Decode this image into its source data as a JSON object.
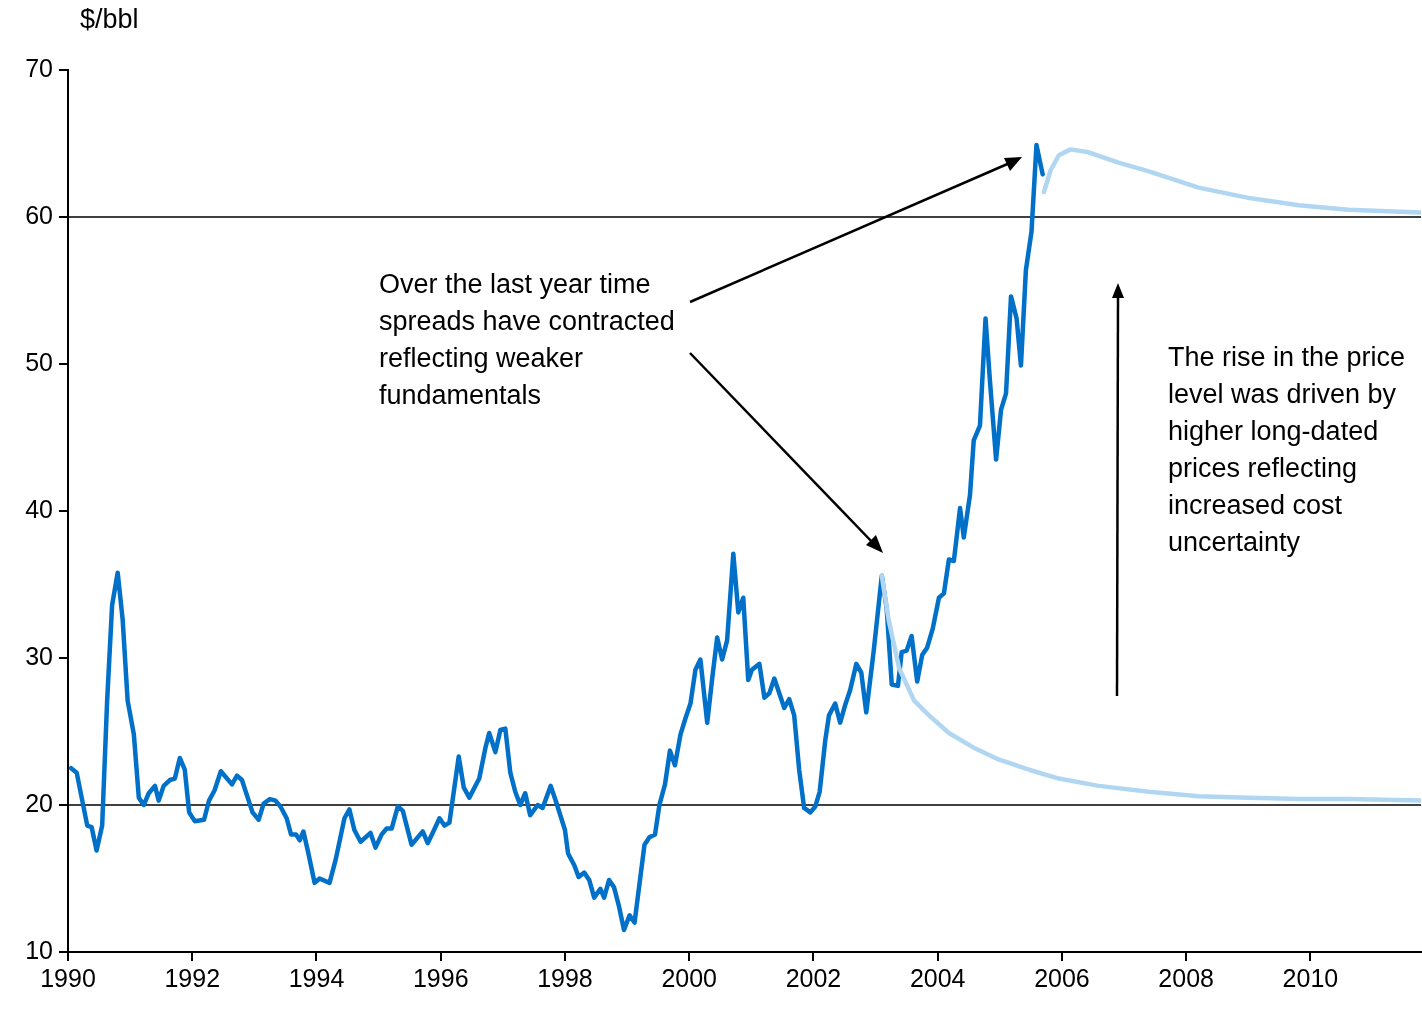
{
  "chart_data": {
    "type": "line",
    "ylabel": "$/bbl",
    "xlim": [
      1990,
      2011.78
    ],
    "xticks": [
      1990,
      1992,
      1994,
      1996,
      1998,
      2000,
      2002,
      2004,
      2006,
      2008,
      2010
    ],
    "ylim": [
      10,
      70
    ],
    "yticks": [
      10,
      20,
      30,
      40,
      50,
      60,
      70
    ],
    "grid": false,
    "legend": false,
    "marker": "none",
    "ref_lines": [
      {
        "axis": "y",
        "value": 20,
        "color": "#000000"
      },
      {
        "axis": "y",
        "value": 60,
        "color": "#000000"
      }
    ],
    "annotations": [
      "Over the last year time spreads have contracted reflecting weaker fundamentals",
      "The rise in the price level was driven by higher long-dated prices reflecting increased cost uncertainty"
    ],
    "series": [
      {
        "color": "#0070c8",
        "x": [
          1990.05,
          1990.14,
          1990.31,
          1990.38,
          1990.46,
          1990.55,
          1990.63,
          1990.71,
          1990.8,
          1990.88,
          1990.96,
          1991.06,
          1991.14,
          1991.22,
          1991.3,
          1991.4,
          1991.46,
          1991.54,
          1991.64,
          1991.72,
          1991.8,
          1991.88,
          1991.95,
          1992.04,
          1992.19,
          1992.27,
          1992.36,
          1992.46,
          1992.64,
          1992.72,
          1992.8,
          1992.97,
          1993.07,
          1993.15,
          1993.25,
          1993.34,
          1993.42,
          1993.52,
          1993.59,
          1993.67,
          1993.73,
          1993.79,
          1993.87,
          1993.97,
          1994.05,
          1994.21,
          1994.31,
          1994.45,
          1994.53,
          1994.61,
          1994.71,
          1994.87,
          1994.95,
          1995.05,
          1995.13,
          1995.21,
          1995.31,
          1995.39,
          1995.53,
          1995.63,
          1995.71,
          1995.79,
          1995.87,
          1995.98,
          1996.06,
          1996.14,
          1996.22,
          1996.29,
          1996.37,
          1996.46,
          1996.62,
          1996.72,
          1996.78,
          1996.88,
          1996.96,
          1997.04,
          1997.12,
          1997.2,
          1997.28,
          1997.36,
          1997.44,
          1997.56,
          1997.64,
          1997.77,
          1997.85,
          1998.0,
          1998.05,
          1998.15,
          1998.22,
          1998.31,
          1998.39,
          1998.47,
          1998.57,
          1998.63,
          1998.71,
          1998.79,
          1998.87,
          1998.95,
          1999.04,
          1999.12,
          1999.28,
          1999.36,
          1999.45,
          1999.52,
          1999.61,
          1999.69,
          1999.77,
          1999.86,
          1999.94,
          2000.02,
          2000.1,
          2000.18,
          2000.29,
          2000.37,
          2000.45,
          2000.53,
          2000.61,
          2000.71,
          2000.79,
          2000.87,
          2000.95,
          2001.01,
          2001.13,
          2001.21,
          2001.29,
          2001.37,
          2001.53,
          2001.61,
          2001.69,
          2001.77,
          2001.85,
          2001.95,
          2002.03,
          2002.1,
          2002.19,
          2002.25,
          2002.35,
          2002.43,
          2002.51,
          2002.59,
          2002.69,
          2002.77,
          2002.85,
          2002.97,
          2003.1,
          2003.18,
          2003.26,
          2003.36,
          2003.42,
          2003.5,
          2003.58,
          2003.67,
          2003.75,
          2003.83,
          2003.92,
          2004.02,
          2004.1,
          2004.18,
          2004.26,
          2004.36,
          2004.42,
          2004.52,
          2004.58,
          2004.68,
          2004.77,
          2004.84,
          2004.94,
          2005.02,
          2005.1,
          2005.18,
          2005.27,
          2005.34,
          2005.42,
          2005.51,
          2005.59,
          2005.69
        ],
        "values": [
          22.5,
          22.2,
          18.6,
          18.5,
          16.9,
          18.6,
          27.1,
          33.6,
          35.8,
          32.6,
          27.1,
          24.8,
          20.5,
          20.0,
          20.8,
          21.3,
          20.3,
          21.3,
          21.7,
          21.8,
          23.2,
          22.4,
          19.5,
          18.9,
          19.0,
          20.3,
          21.0,
          22.3,
          21.4,
          22.0,
          21.7,
          19.5,
          19.0,
          20.1,
          20.4,
          20.3,
          19.9,
          19.1,
          18.0,
          18.0,
          17.6,
          18.2,
          16.7,
          14.7,
          15.0,
          14.7,
          16.3,
          19.1,
          19.7,
          18.3,
          17.5,
          18.1,
          17.1,
          18.0,
          18.4,
          18.4,
          19.9,
          19.6,
          17.3,
          17.8,
          18.2,
          17.4,
          18.1,
          19.1,
          18.6,
          18.8,
          21.2,
          23.3,
          21.2,
          20.5,
          21.8,
          23.9,
          24.9,
          23.6,
          25.1,
          25.2,
          22.2,
          20.9,
          20.0,
          20.8,
          19.3,
          20.0,
          19.8,
          21.3,
          20.3,
          18.3,
          16.7,
          15.9,
          15.1,
          15.4,
          14.9,
          13.7,
          14.3,
          13.7,
          14.9,
          14.4,
          13.1,
          11.5,
          12.5,
          12.0,
          17.3,
          17.8,
          18.0,
          20.0,
          21.4,
          23.7,
          22.7,
          24.8,
          25.9,
          26.9,
          29.2,
          29.9,
          25.6,
          28.6,
          31.4,
          29.9,
          31.2,
          37.1,
          33.1,
          34.1,
          28.5,
          29.2,
          29.6,
          27.3,
          27.6,
          28.6,
          26.6,
          27.2,
          26.1,
          22.4,
          19.8,
          19.5,
          19.9,
          20.9,
          24.4,
          26.1,
          26.9,
          25.6,
          26.8,
          27.8,
          29.6,
          29.0,
          26.3,
          30.5,
          35.6,
          33.3,
          28.2,
          28.1,
          30.4,
          30.5,
          31.5,
          28.4,
          30.2,
          30.7,
          32.0,
          34.1,
          34.4,
          36.7,
          36.6,
          40.2,
          38.2,
          41.1,
          44.8,
          45.8,
          53.1,
          48.9,
          43.5,
          46.9,
          48.0,
          54.6,
          53.1,
          49.9,
          56.4,
          59.0,
          64.9,
          62.9
        ]
      },
      {
        "color": "#b0d6f2",
        "x": [
          2003.1,
          2003.21,
          2003.38,
          2003.62,
          2003.86,
          2004.18,
          2004.58,
          2004.98,
          2005.47,
          2005.95,
          2006.59,
          2007.4,
          2008.2,
          2009.0,
          2009.81,
          2010.61,
          2011.77
        ],
        "values": [
          35.6,
          32.6,
          29.3,
          27.1,
          26.1,
          24.9,
          23.9,
          23.1,
          22.4,
          21.8,
          21.3,
          20.9,
          20.6,
          20.5,
          20.4,
          20.4,
          20.3
        ]
      },
      {
        "color": "#b0d6f2",
        "x": [
          2005.71,
          2005.82,
          2005.95,
          2006.14,
          2006.43,
          2006.91,
          2007.4,
          2008.2,
          2009.0,
          2009.81,
          2010.61,
          2011.77
        ],
        "values": [
          61.7,
          63.2,
          64.2,
          64.6,
          64.4,
          63.7,
          63.1,
          62.0,
          61.3,
          60.8,
          60.5,
          60.3
        ]
      }
    ]
  }
}
